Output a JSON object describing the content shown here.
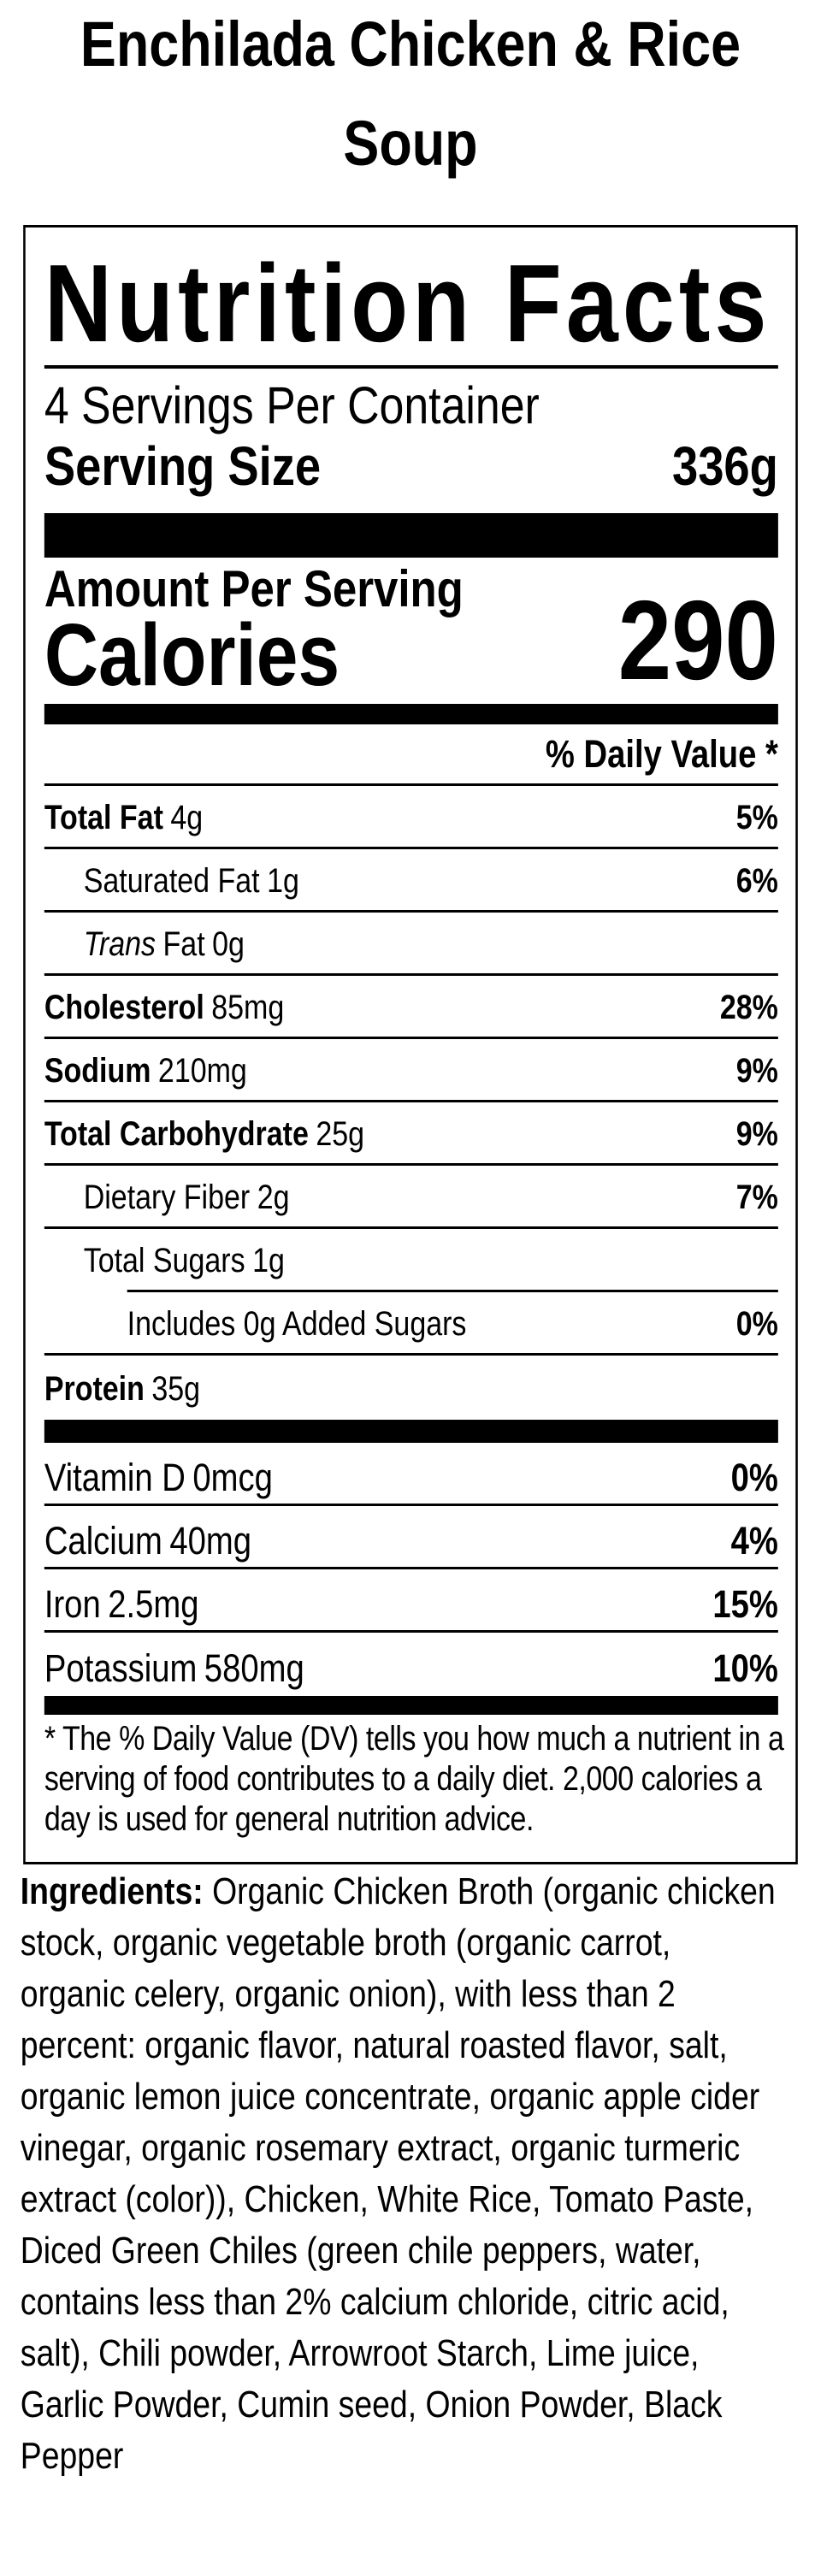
{
  "product_title": "Enchilada Chicken & Rice Soup",
  "nutrition_facts": {
    "heading": "Nutrition Facts",
    "servings_per_container": "4 Servings Per Container",
    "serving_size_label": "Serving Size",
    "serving_size_value": "336g",
    "amount_per_serving_label": "Amount Per Serving",
    "calories_label": "Calories",
    "calories_value": "290",
    "daily_value_header": "% Daily Value *",
    "rows": [
      {
        "name": "Total Fat",
        "value": "4g",
        "dv": "5%"
      },
      {
        "name": "Saturated Fat",
        "value": "1g",
        "dv": "6%"
      },
      {
        "name_italic": "Trans",
        "name": "Fat",
        "value": "0g",
        "dv": ""
      },
      {
        "name": "Cholesterol",
        "value": "85mg",
        "dv": "28%"
      },
      {
        "name": "Sodium",
        "value": "210mg",
        "dv": "9%"
      },
      {
        "name": "Total Carbohydrate",
        "value": "25g",
        "dv": "9%"
      },
      {
        "name": "Dietary Fiber",
        "value": "2g",
        "dv": "7%"
      },
      {
        "name": "Total Sugars",
        "value": "1g",
        "dv": ""
      },
      {
        "name": "Includes 0g Added Sugars",
        "value": "",
        "dv": "0%"
      },
      {
        "name": "Protein",
        "value": "35g",
        "dv": ""
      }
    ],
    "vitamins": [
      {
        "name": "Vitamin D",
        "value": "0mcg",
        "dv": "0%"
      },
      {
        "name": "Calcium",
        "value": "40mg",
        "dv": "4%"
      },
      {
        "name": "Iron",
        "value": "2.5mg",
        "dv": "15%"
      },
      {
        "name": "Potassium",
        "value": "580mg",
        "dv": "10%"
      }
    ],
    "footnote_lines": [
      "* The % Daily Value (DV) tells you how much a nutrient in a",
      "serving of food contributes to a daily diet. 2,000 calories a",
      "day is used for general nutrition advice."
    ]
  },
  "ingredients": {
    "label": "Ingredients:",
    "lines": [
      "Organic Chicken Broth (organic chicken",
      "stock, organic vegetable broth (organic carrot,",
      "organic celery, organic onion), with less than 2",
      "percent: organic flavor, natural roasted flavor, salt,",
      "organic lemon juice concentrate, organic apple cider",
      "vinegar, organic rosemary extract, organic turmeric",
      "extract (color)), Chicken, White Rice, Tomato Paste,",
      "Diced Green Chiles (green chile peppers, water,",
      "contains less than 2% calcium chloride, citric acid,",
      "salt), Chili powder, Arrowroot Starch, Lime juice,",
      "Garlic Powder, Cumin seed, Onion Powder, Black",
      "Pepper"
    ]
  }
}
